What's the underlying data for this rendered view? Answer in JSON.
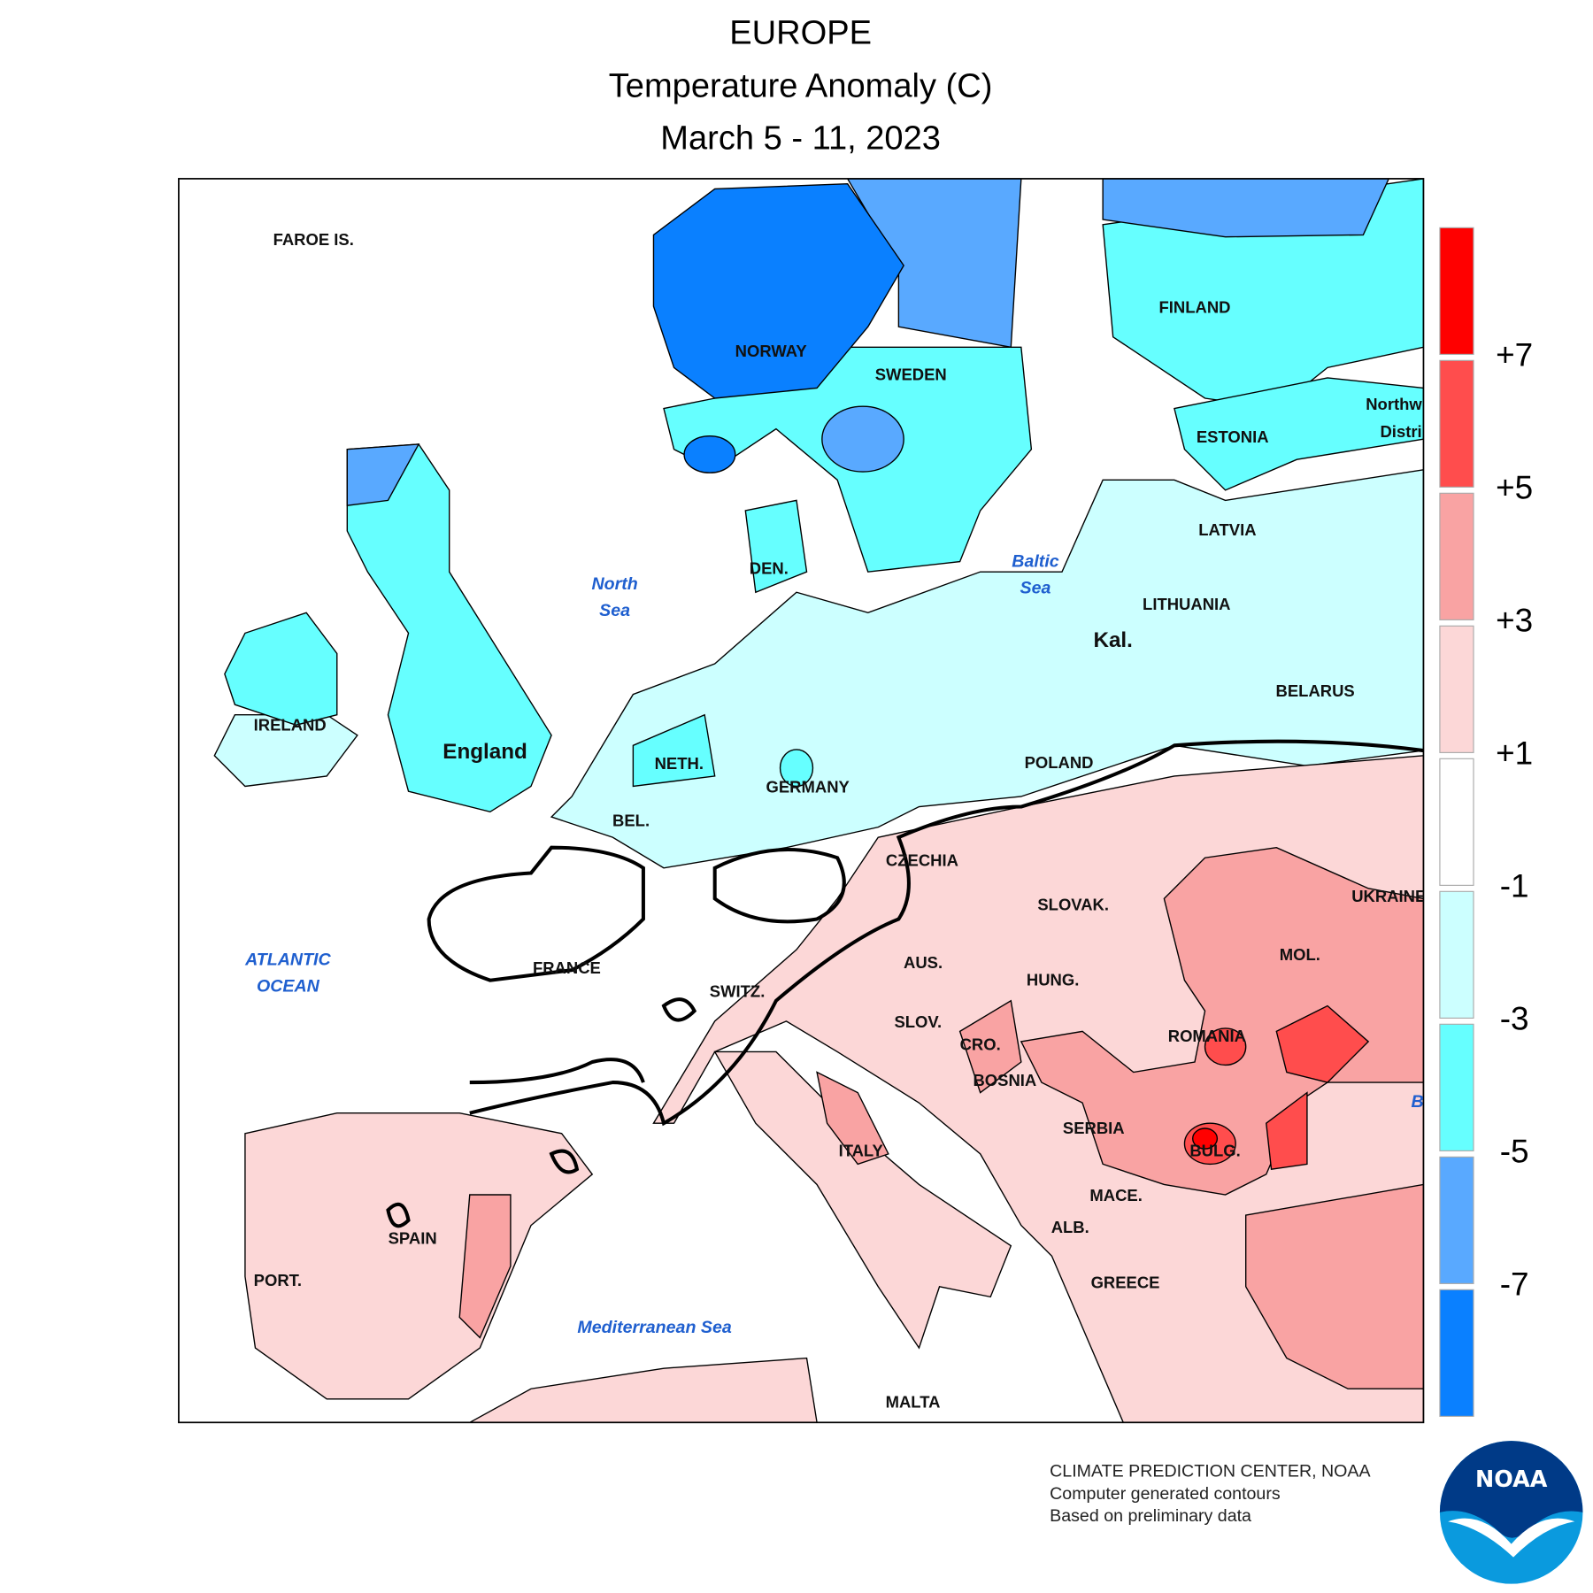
{
  "header": {
    "region": "EUROPE",
    "title": "Temperature Anomaly (C)",
    "period": "March 5 - 11, 2023"
  },
  "map": {
    "country_labels": [
      "FAROE IS.",
      "NORWAY",
      "SWEDEN",
      "FINLAND",
      "ESTONIA",
      "Northw",
      "Distri",
      "LATVIA",
      "LITHUANIA",
      "Kal.",
      "BELARUS",
      "POLAND",
      "GERMANY",
      "DEN.",
      "NETH.",
      "BEL.",
      "England",
      "IRELAND",
      "FRANCE",
      "SWITZ.",
      "AUS.",
      "CZECHIA",
      "SLOVAK.",
      "HUNG.",
      "SLOV.",
      "CRO.",
      "BOSNIA",
      "ROMANIA",
      "MOL.",
      "UKRAINE",
      "SERBIA",
      "BULG.",
      "MACE.",
      "ALB.",
      "GREECE",
      "ITALY",
      "SPAIN",
      "PORT.",
      "MALTA"
    ],
    "water_labels": [
      [
        "North",
        "Sea"
      ],
      [
        "Baltic",
        "Sea"
      ],
      [
        "ATLANTIC",
        "OCEAN"
      ],
      [
        "Mediterranean Sea"
      ],
      [
        "B"
      ]
    ]
  },
  "legend": {
    "colors": [
      "#ff0000",
      "#ff4d4d",
      "#f9a3a3",
      "#fcd7d7",
      "#ffffff",
      "#ccffff",
      "#66ffff",
      "#59a9ff",
      "#0a80ff"
    ],
    "labels": [
      "+7",
      "+5",
      "+3",
      "+1",
      "-1",
      "-3",
      "-5",
      "-7"
    ]
  },
  "credits": [
    "CLIMATE PREDICTION CENTER, NOAA",
    "Computer generated contours",
    "Based on preliminary data"
  ],
  "logo": "NOAA"
}
